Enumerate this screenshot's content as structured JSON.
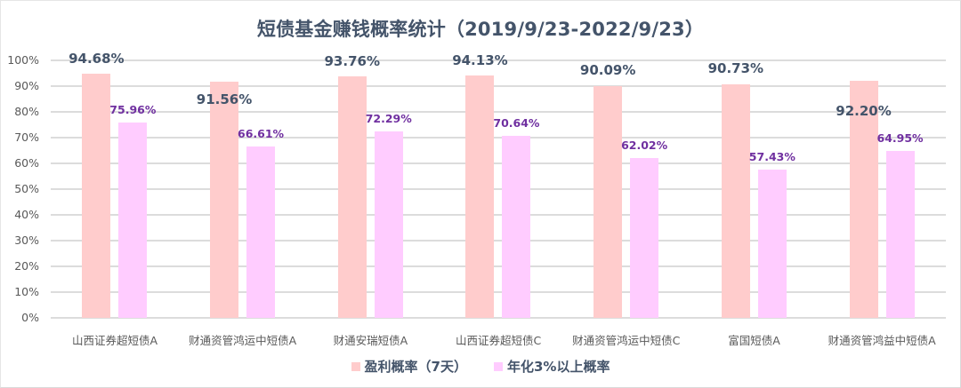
{
  "chart": {
    "title": "短债基金赚钱概率统计（2019/9/23-2022/9/23）",
    "colors": {
      "series1": "#ffcccc",
      "series2": "#ffccff",
      "label1": "#44546a",
      "label2": "#7030a0"
    },
    "yticks": [
      "0%",
      "10%",
      "20%",
      "30%",
      "40%",
      "50%",
      "60%",
      "70%",
      "80%",
      "90%",
      "100%"
    ],
    "legend": [
      {
        "label": "盈利概率（7天）",
        "color": "#ffcccc"
      },
      {
        "label": "年化3%以上概率",
        "color": "#ffccff"
      }
    ],
    "labels1": [
      "94.68%",
      "91.56%",
      "93.76%",
      "94.13%",
      "90.09%",
      "90.73%",
      "92.20%"
    ],
    "labels2": [
      "75.96%",
      "66.61%",
      "72.29%",
      "70.64%",
      "62.02%",
      "57.43%",
      "64.95%"
    ],
    "categories": [
      "山西证券超短债A",
      "财通资管鸿运中短债A",
      "财通安瑞短债A",
      "山西证券超短债C",
      "财通资管鸿运中短债C",
      "富国短债A",
      "财通资管鸿益中短债A"
    ]
  },
  "chart_data": {
    "type": "bar",
    "title": "短债基金赚钱概率统计（2019/9/23-2022/9/23）",
    "xlabel": "",
    "ylabel": "",
    "ylim": [
      0,
      100
    ],
    "yticks": [
      0,
      10,
      20,
      30,
      40,
      50,
      60,
      70,
      80,
      90,
      100
    ],
    "ytick_format": "percent",
    "grid": true,
    "legend_position": "bottom",
    "categories": [
      "山西证券超短债A",
      "财通资管鸿运中短债A",
      "财通安瑞短债A",
      "山西证券超短债C",
      "财通资管鸿运中短债C",
      "富国短债A",
      "财通资管鸿益中短债A"
    ],
    "series": [
      {
        "name": "盈利概率（7天）",
        "color": "#ffcccc",
        "values": [
          94.68,
          91.56,
          93.76,
          94.13,
          90.09,
          90.73,
          92.2
        ]
      },
      {
        "name": "年化3%以上概率",
        "color": "#ffccff",
        "values": [
          75.96,
          66.61,
          72.29,
          70.64,
          62.02,
          57.43,
          64.95
        ]
      }
    ]
  }
}
